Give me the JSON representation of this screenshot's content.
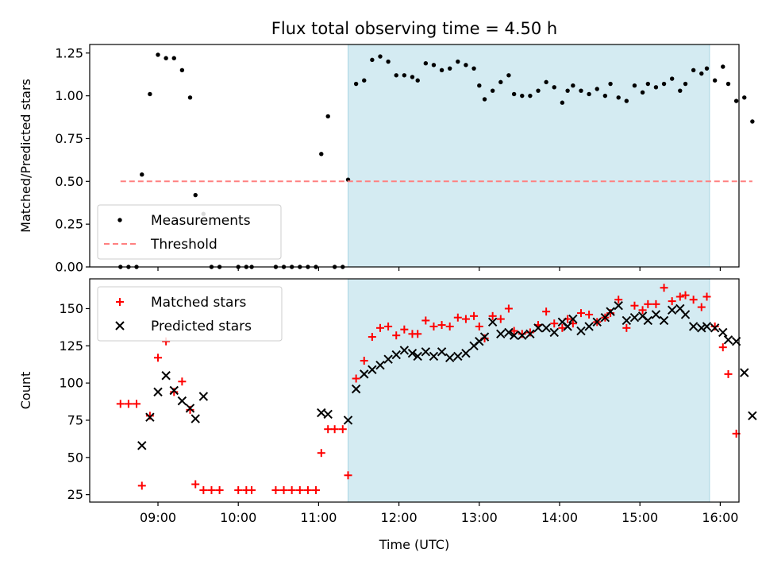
{
  "chart_data": {
    "type": "scatter",
    "title": "Flux total observing time = 4.50 h",
    "xlabel": "Time (UTC)",
    "xlim": [
      "08:09",
      "16:14"
    ],
    "xticks": [
      "09:00",
      "10:00",
      "11:00",
      "12:00",
      "13:00",
      "14:00",
      "15:00",
      "16:00"
    ],
    "highlight": {
      "start": "11:22",
      "end": "15:52",
      "color": "#d4ebf2"
    },
    "panels": [
      {
        "ylabel": "Matched/Predicted stars",
        "ylim": [
          0,
          1.3
        ],
        "yticks": [
          "0.00",
          "0.25",
          "0.50",
          "0.75",
          "1.00",
          "1.25"
        ],
        "legend": {
          "placement": "lower-left"
        },
        "series": [
          {
            "name": "Measurements",
            "marker": "dot",
            "color": "#000000",
            "points": [
              [
                "08:32",
                0
              ],
              [
                "08:38",
                0
              ],
              [
                "08:44",
                0
              ],
              [
                "08:48",
                0.54
              ],
              [
                "08:54",
                1.01
              ],
              [
                "09:00",
                1.24
              ],
              [
                "09:06",
                1.22
              ],
              [
                "09:12",
                1.22
              ],
              [
                "09:18",
                1.15
              ],
              [
                "09:24",
                0.99
              ],
              [
                "09:28",
                0.42
              ],
              [
                "09:34",
                0.31
              ],
              [
                "09:40",
                0
              ],
              [
                "09:46",
                0
              ],
              [
                "10:00",
                0
              ],
              [
                "10:06",
                0
              ],
              [
                "10:10",
                0
              ],
              [
                "10:28",
                0
              ],
              [
                "10:34",
                0
              ],
              [
                "10:40",
                0
              ],
              [
                "10:46",
                0
              ],
              [
                "10:52",
                0
              ],
              [
                "10:58",
                0
              ],
              [
                "11:02",
                0.66
              ],
              [
                "11:07",
                0.88
              ],
              [
                "11:12",
                0
              ],
              [
                "11:18",
                0
              ],
              [
                "11:22",
                0.51
              ],
              [
                "11:28",
                1.07
              ],
              [
                "11:34",
                1.09
              ],
              [
                "11:40",
                1.21
              ],
              [
                "11:46",
                1.23
              ],
              [
                "11:52",
                1.2
              ],
              [
                "11:58",
                1.12
              ],
              [
                "12:04",
                1.12
              ],
              [
                "12:10",
                1.11
              ],
              [
                "12:14",
                1.09
              ],
              [
                "12:20",
                1.19
              ],
              [
                "12:26",
                1.18
              ],
              [
                "12:32",
                1.15
              ],
              [
                "12:38",
                1.16
              ],
              [
                "12:44",
                1.2
              ],
              [
                "12:50",
                1.18
              ],
              [
                "12:56",
                1.16
              ],
              [
                "13:00",
                1.06
              ],
              [
                "13:04",
                0.98
              ],
              [
                "13:10",
                1.03
              ],
              [
                "13:16",
                1.08
              ],
              [
                "13:22",
                1.12
              ],
              [
                "13:26",
                1.01
              ],
              [
                "13:32",
                1.0
              ],
              [
                "13:38",
                1.0
              ],
              [
                "13:44",
                1.03
              ],
              [
                "13:50",
                1.08
              ],
              [
                "13:56",
                1.05
              ],
              [
                "14:02",
                0.96
              ],
              [
                "14:06",
                1.03
              ],
              [
                "14:10",
                1.06
              ],
              [
                "14:16",
                1.03
              ],
              [
                "14:22",
                1.01
              ],
              [
                "14:28",
                1.04
              ],
              [
                "14:34",
                1.0
              ],
              [
                "14:38",
                1.07
              ],
              [
                "14:44",
                0.99
              ],
              [
                "14:50",
                0.97
              ],
              [
                "14:56",
                1.06
              ],
              [
                "15:02",
                1.02
              ],
              [
                "15:06",
                1.07
              ],
              [
                "15:12",
                1.05
              ],
              [
                "15:18",
                1.07
              ],
              [
                "15:24",
                1.1
              ],
              [
                "15:30",
                1.03
              ],
              [
                "15:34",
                1.07
              ],
              [
                "15:40",
                1.15
              ],
              [
                "15:46",
                1.13
              ],
              [
                "15:50",
                1.16
              ],
              [
                "15:56",
                1.09
              ],
              [
                "16:02",
                1.17
              ],
              [
                "16:06",
                1.07
              ],
              [
                "16:12",
                0.97
              ],
              [
                "16:18",
                0.99
              ],
              [
                "16:24",
                0.85
              ]
            ]
          },
          {
            "name": "Threshold",
            "marker": "dashed-line",
            "color": "#ff8080",
            "points": [
              [
                "08:32",
                0.5
              ],
              [
                "16:24",
                0.5
              ]
            ]
          }
        ]
      },
      {
        "ylabel": "Count",
        "ylim": [
          20,
          170
        ],
        "yticks": [
          "25",
          "50",
          "75",
          "100",
          "125",
          "150"
        ],
        "legend": {
          "placement": "upper-left"
        },
        "series": [
          {
            "name": "Matched stars",
            "marker": "plus",
            "color": "#ff0000",
            "points": [
              [
                "08:32",
                86
              ],
              [
                "08:38",
                86
              ],
              [
                "08:44",
                86
              ],
              [
                "08:48",
                31
              ],
              [
                "08:54",
                78
              ],
              [
                "09:00",
                117
              ],
              [
                "09:06",
                128
              ],
              [
                "09:12",
                94
              ],
              [
                "09:18",
                101
              ],
              [
                "09:24",
                82
              ],
              [
                "09:28",
                32
              ],
              [
                "09:34",
                28
              ],
              [
                "09:40",
                28
              ],
              [
                "09:46",
                28
              ],
              [
                "10:00",
                28
              ],
              [
                "10:06",
                28
              ],
              [
                "10:10",
                28
              ],
              [
                "10:28",
                28
              ],
              [
                "10:34",
                28
              ],
              [
                "10:40",
                28
              ],
              [
                "10:46",
                28
              ],
              [
                "10:52",
                28
              ],
              [
                "10:58",
                28
              ],
              [
                "11:02",
                53
              ],
              [
                "11:07",
                69
              ],
              [
                "11:12",
                69
              ],
              [
                "11:18",
                69
              ],
              [
                "11:22",
                38
              ],
              [
                "11:28",
                103
              ],
              [
                "11:34",
                115
              ],
              [
                "11:40",
                131
              ],
              [
                "11:46",
                137
              ],
              [
                "11:52",
                138
              ],
              [
                "11:58",
                132
              ],
              [
                "12:04",
                136
              ],
              [
                "12:10",
                133
              ],
              [
                "12:14",
                133
              ],
              [
                "12:20",
                142
              ],
              [
                "12:26",
                138
              ],
              [
                "12:32",
                139
              ],
              [
                "12:38",
                138
              ],
              [
                "12:44",
                144
              ],
              [
                "12:50",
                143
              ],
              [
                "12:56",
                145
              ],
              [
                "13:00",
                138
              ],
              [
                "13:04",
                130
              ],
              [
                "13:10",
                145
              ],
              [
                "13:16",
                143
              ],
              [
                "13:22",
                150
              ],
              [
                "13:26",
                135
              ],
              [
                "13:32",
                133
              ],
              [
                "13:38",
                134
              ],
              [
                "13:44",
                139
              ],
              [
                "13:50",
                148
              ],
              [
                "13:56",
                140
              ],
              [
                "14:02",
                137
              ],
              [
                "14:06",
                143
              ],
              [
                "14:10",
                140
              ],
              [
                "14:16",
                147
              ],
              [
                "14:22",
                146
              ],
              [
                "14:28",
                141
              ],
              [
                "14:34",
                144
              ],
              [
                "14:38",
                147
              ],
              [
                "14:44",
                156
              ],
              [
                "14:50",
                137
              ],
              [
                "14:56",
                152
              ],
              [
                "15:02",
                149
              ],
              [
                "15:06",
                153
              ],
              [
                "15:12",
                153
              ],
              [
                "15:18",
                164
              ],
              [
                "15:24",
                155
              ],
              [
                "15:30",
                158
              ],
              [
                "15:34",
                159
              ],
              [
                "15:40",
                156
              ],
              [
                "15:46",
                151
              ],
              [
                "15:50",
                158
              ],
              [
                "15:56",
                138
              ],
              [
                "16:02",
                124
              ],
              [
                "16:06",
                106
              ],
              [
                "16:12",
                66
              ]
            ]
          },
          {
            "name": "Predicted stars",
            "marker": "cross",
            "color": "#000000",
            "points": [
              [
                "08:48",
                58
              ],
              [
                "08:54",
                77
              ],
              [
                "09:00",
                94
              ],
              [
                "09:06",
                105
              ],
              [
                "09:12",
                95
              ],
              [
                "09:18",
                88
              ],
              [
                "09:24",
                83
              ],
              [
                "09:28",
                76
              ],
              [
                "09:34",
                91
              ],
              [
                "11:02",
                80
              ],
              [
                "11:07",
                79
              ],
              [
                "11:22",
                75
              ],
              [
                "11:28",
                96
              ],
              [
                "11:34",
                106
              ],
              [
                "11:40",
                109
              ],
              [
                "11:46",
                112
              ],
              [
                "11:52",
                116
              ],
              [
                "11:58",
                119
              ],
              [
                "12:04",
                122
              ],
              [
                "12:10",
                120
              ],
              [
                "12:14",
                118
              ],
              [
                "12:20",
                121
              ],
              [
                "12:26",
                118
              ],
              [
                "12:32",
                121
              ],
              [
                "12:38",
                117
              ],
              [
                "12:44",
                118
              ],
              [
                "12:50",
                120
              ],
              [
                "12:56",
                125
              ],
              [
                "13:00",
                128
              ],
              [
                "13:04",
                131
              ],
              [
                "13:10",
                141
              ],
              [
                "13:16",
                133
              ],
              [
                "13:22",
                134
              ],
              [
                "13:26",
                132
              ],
              [
                "13:32",
                132
              ],
              [
                "13:38",
                133
              ],
              [
                "13:44",
                137
              ],
              [
                "13:50",
                137
              ],
              [
                "13:56",
                134
              ],
              [
                "14:02",
                141
              ],
              [
                "14:06",
                138
              ],
              [
                "14:10",
                143
              ],
              [
                "14:16",
                135
              ],
              [
                "14:22",
                138
              ],
              [
                "14:28",
                141
              ],
              [
                "14:34",
                144
              ],
              [
                "14:38",
                148
              ],
              [
                "14:44",
                152
              ],
              [
                "14:50",
                142
              ],
              [
                "14:56",
                144
              ],
              [
                "15:02",
                145
              ],
              [
                "15:06",
                142
              ],
              [
                "15:12",
                146
              ],
              [
                "15:18",
                142
              ],
              [
                "15:24",
                149
              ],
              [
                "15:30",
                150
              ],
              [
                "15:34",
                146
              ],
              [
                "15:40",
                138
              ],
              [
                "15:46",
                137
              ],
              [
                "15:50",
                138
              ],
              [
                "15:56",
                137
              ],
              [
                "16:02",
                134
              ],
              [
                "16:06",
                129
              ],
              [
                "16:12",
                128
              ],
              [
                "16:18",
                107
              ],
              [
                "16:24",
                78
              ]
            ]
          }
        ]
      }
    ]
  }
}
